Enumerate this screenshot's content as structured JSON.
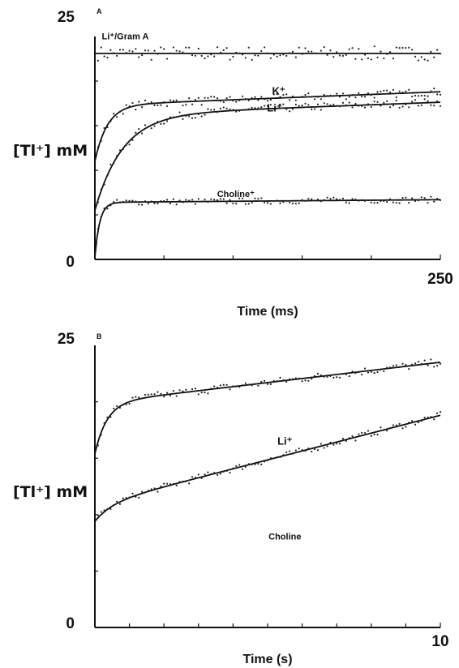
{
  "chart_data": [
    {
      "type": "line",
      "panel_letter": "A",
      "xlabel": "Time (ms)",
      "ylabel": "[Tl⁺] mM",
      "xlim": [
        0,
        250
      ],
      "ylim": [
        0,
        25
      ],
      "x_tick_labels": {
        "left": "",
        "right": "250"
      },
      "y_tick_labels": {
        "top": "25",
        "bottom": "0"
      },
      "x_minor_ticks": [
        50,
        100,
        150,
        200
      ],
      "y_minor_ticks": [
        5,
        10,
        15,
        20
      ],
      "grid": false,
      "series": [
        {
          "name": "Li⁺/Gram A",
          "label_at": [
            22,
            24.7
          ],
          "label_size": 11,
          "kind": "flat",
          "plateau": 23.1,
          "scatter_spread": 0.8
        },
        {
          "name": "K⁺",
          "label_at": [
            133,
            18.5
          ],
          "label_size": 13,
          "kind": "exp",
          "y0": 11,
          "amp": 6.3,
          "tau": 9,
          "slope": 0.006,
          "scatter_spread": 0.45
        },
        {
          "name": "Li⁺",
          "label_at": [
            130,
            16.6
          ],
          "label_size": 13,
          "kind": "exp",
          "y0": 5.5,
          "amp": 10.7,
          "tau": 20,
          "slope": 0.0057,
          "scatter_spread": 0.45
        },
        {
          "name": "Choline⁺",
          "label_at": [
            102,
            7.0
          ],
          "label_size": 11,
          "kind": "exp",
          "y0": 0.3,
          "amp": 6.1,
          "tau": 3.5,
          "slope": 0.0012,
          "scatter_spread": 0.35
        }
      ]
    },
    {
      "type": "line",
      "panel_letter": "B",
      "xlabel": "Time (s)",
      "ylabel": "[Tl⁺] mM",
      "xlim": [
        0,
        10
      ],
      "ylim": [
        0,
        25
      ],
      "x_tick_labels": {
        "left": "",
        "right": "10"
      },
      "y_tick_labels": {
        "top": "25",
        "bottom": "0"
      },
      "x_minor_ticks": [
        1,
        2,
        3,
        4,
        5,
        6,
        7,
        8,
        9
      ],
      "y_minor_ticks": [
        5,
        10,
        15,
        20
      ],
      "grid": false,
      "series": [
        {
          "name": "Li⁺",
          "label_at": [
            5.5,
            16.2
          ],
          "label_size": 13,
          "kind": "exp",
          "y0": 15.4,
          "amp": 4.5,
          "tau": 0.35,
          "slope": 0.36,
          "scatter_spread": 0.35
        },
        {
          "name": "Choline",
          "label_at": [
            5.5,
            7.8
          ],
          "label_size": 11,
          "kind": "exp",
          "y0": 9.4,
          "amp": 1.5,
          "tau": 0.5,
          "slope": 0.79,
          "scatter_spread": 0.3
        }
      ]
    }
  ]
}
